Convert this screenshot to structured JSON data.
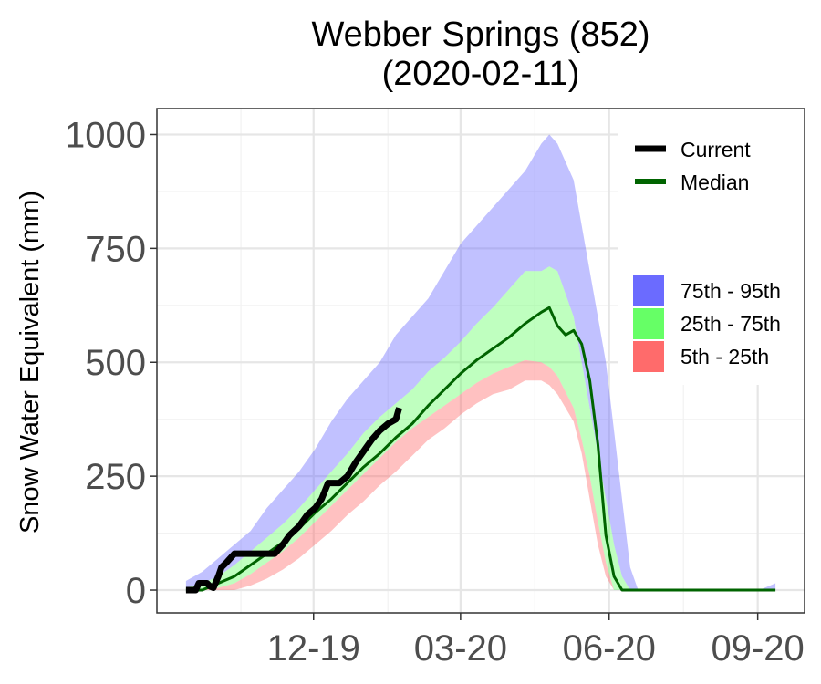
{
  "chart_data": {
    "type": "area",
    "title_line1": "Webber Springs (852)",
    "title_line2": "(2020-02-11)",
    "xlabel": "",
    "ylabel": "Snow Water Equivalent (mm)",
    "x_unit": "days since 2019-10-01",
    "xlim": [
      -18,
      383
    ],
    "ylim": [
      -50,
      1057
    ],
    "x_ticks": [
      {
        "day": 79,
        "label": "12-19"
      },
      {
        "day": 170,
        "label": "03-20"
      },
      {
        "day": 262,
        "label": "06-20"
      },
      {
        "day": 354,
        "label": "09-20"
      }
    ],
    "x_minor": [
      34,
      125,
      216,
      308
    ],
    "y_ticks": [
      0,
      250,
      500,
      750,
      1000
    ],
    "y_minor": [
      125,
      375,
      625,
      875
    ],
    "colors": {
      "current": "#000000",
      "median": "#006400",
      "band_75_95": "#6b6bff",
      "band_25_75": "#66ff66",
      "band_5_25": "#ff6b6b"
    },
    "band_opacity": 0.42,
    "legend": {
      "lines": [
        {
          "key": "current",
          "label": "Current"
        },
        {
          "key": "median",
          "label": "Median"
        }
      ],
      "bands": [
        {
          "key": "band_75_95",
          "label": "75th - 95th"
        },
        {
          "key": "band_25_75",
          "label": "25th - 75th"
        },
        {
          "key": "band_5_25",
          "label": "5th - 25th"
        }
      ]
    },
    "percentile_x": [
      0,
      10,
      20,
      30,
      40,
      50,
      60,
      70,
      80,
      90,
      100,
      110,
      120,
      130,
      140,
      150,
      160,
      170,
      180,
      190,
      200,
      210,
      220,
      225,
      230,
      240,
      245,
      250,
      255,
      260,
      265,
      270,
      275,
      280,
      285,
      300,
      320,
      340,
      355,
      365
    ],
    "p5": [
      0,
      0,
      0,
      0,
      10,
      25,
      45,
      70,
      100,
      130,
      165,
      195,
      230,
      260,
      295,
      330,
      355,
      385,
      410,
      430,
      440,
      460,
      460,
      450,
      430,
      370,
      300,
      200,
      100,
      30,
      0,
      0,
      0,
      0,
      0,
      0,
      0,
      0,
      0,
      0
    ],
    "p25": [
      0,
      0,
      5,
      15,
      35,
      60,
      85,
      115,
      150,
      185,
      220,
      255,
      290,
      325,
      355,
      380,
      405,
      430,
      455,
      475,
      490,
      505,
      500,
      490,
      470,
      400,
      330,
      250,
      150,
      60,
      0,
      0,
      0,
      0,
      0,
      0,
      0,
      0,
      0,
      0
    ],
    "p75": [
      5,
      15,
      30,
      55,
      85,
      115,
      145,
      180,
      220,
      260,
      300,
      345,
      380,
      410,
      440,
      480,
      510,
      545,
      585,
      620,
      660,
      700,
      700,
      710,
      700,
      600,
      500,
      400,
      300,
      200,
      100,
      30,
      0,
      0,
      0,
      0,
      0,
      0,
      0,
      0
    ],
    "p95": [
      20,
      40,
      70,
      100,
      130,
      180,
      220,
      260,
      310,
      370,
      420,
      460,
      500,
      560,
      600,
      640,
      700,
      760,
      800,
      840,
      880,
      920,
      980,
      1000,
      980,
      900,
      800,
      700,
      600,
      500,
      350,
      200,
      50,
      0,
      0,
      0,
      0,
      0,
      0,
      15
    ],
    "median": {
      "x": [
        0,
        10,
        20,
        30,
        40,
        50,
        60,
        70,
        80,
        90,
        100,
        110,
        120,
        130,
        140,
        150,
        160,
        170,
        180,
        190,
        200,
        210,
        220,
        225,
        230,
        235,
        240,
        245,
        250,
        255,
        260,
        265,
        270,
        280,
        300,
        320,
        340,
        360,
        365
      ],
      "y": [
        0,
        0,
        15,
        30,
        55,
        80,
        105,
        135,
        170,
        200,
        235,
        270,
        300,
        335,
        365,
        405,
        440,
        475,
        505,
        530,
        555,
        585,
        610,
        620,
        580,
        560,
        570,
        540,
        460,
        320,
        120,
        30,
        0,
        0,
        0,
        0,
        0,
        0,
        0
      ]
    },
    "current": {
      "x": [
        0,
        6,
        8,
        13,
        15,
        17,
        20,
        22,
        25,
        30,
        35,
        45,
        55,
        60,
        64,
        70,
        75,
        80,
        84,
        88,
        95,
        100,
        105,
        110,
        115,
        120,
        125,
        130,
        132
      ],
      "y": [
        0,
        0,
        15,
        15,
        8,
        5,
        30,
        50,
        60,
        80,
        80,
        80,
        80,
        100,
        120,
        140,
        165,
        180,
        200,
        235,
        235,
        250,
        280,
        305,
        330,
        350,
        365,
        375,
        400
      ]
    }
  }
}
